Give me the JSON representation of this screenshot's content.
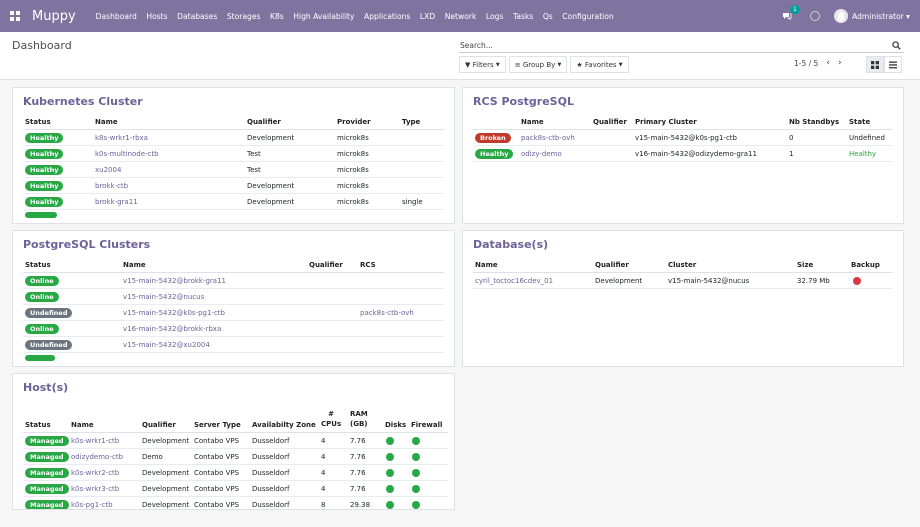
{
  "navbar": {
    "brand": "Muppy",
    "menu": [
      "Dashboard",
      "Hosts",
      "Databases",
      "Storages",
      "K8s",
      "High Availability",
      "Applications",
      "LXD",
      "Network",
      "Logs",
      "Tasks",
      "Qs",
      "Configuration"
    ],
    "chat_count": "1",
    "user": "Administrator ▾"
  },
  "control_panel": {
    "breadcrumb": "Dashboard",
    "search_placeholder": "Search...",
    "filters": "Filters",
    "group_by": "Group By",
    "favorites": "Favorites",
    "pager": "1-5 / 5"
  },
  "kubernetes": {
    "title": "Kubernetes Cluster",
    "headers": [
      "Status",
      "Name",
      "Qualifier",
      "Provider",
      "Type"
    ],
    "rows": [
      {
        "status": "Healthy",
        "name": "k8s-wrkr1-rbxa",
        "qualifier": "Development",
        "provider": "microk8s",
        "type": ""
      },
      {
        "status": "Healthy",
        "name": "k0s-multinode-ctb",
        "qualifier": "Test",
        "provider": "microk8s",
        "type": ""
      },
      {
        "status": "Healthy",
        "name": "xu2004",
        "qualifier": "Test",
        "provider": "microk8s",
        "type": ""
      },
      {
        "status": "Healthy",
        "name": "brokk-ctb",
        "qualifier": "Development",
        "provider": "microk8s",
        "type": ""
      },
      {
        "status": "Healthy",
        "name": "brokk-gra11",
        "qualifier": "Development",
        "provider": "microk8s",
        "type": "single"
      }
    ]
  },
  "rcs": {
    "title": "RCS PostgreSQL",
    "headers": [
      "",
      "Name",
      "Qualifier",
      "Primary Cluster",
      "Nb Standbys",
      "State"
    ],
    "rows": [
      {
        "status": "Broken",
        "name": "pack8s-ctb-ovh",
        "qualifier": "",
        "primary": "v15-main-5432@k0s-pg1-ctb",
        "standbys": "0",
        "state": "Undefined"
      },
      {
        "status": "Healthy",
        "name": "odizy-demo",
        "qualifier": "",
        "primary": "v16-main-5432@odizydemo-gra11",
        "standbys": "1",
        "state": "Healthy"
      }
    ]
  },
  "pgclusters": {
    "title": "PostgreSQL Clusters",
    "headers": [
      "Status",
      "Name",
      "Qualifier",
      "RCS"
    ],
    "rows": [
      {
        "status": "Online",
        "name": "v15-main-5432@brokk-gra11",
        "qualifier": "",
        "rcs": ""
      },
      {
        "status": "Online",
        "name": "v15-main-5432@nucus",
        "qualifier": "",
        "rcs": ""
      },
      {
        "status": "Undefined",
        "name": "v15-main-5432@k0s-pg1-ctb",
        "qualifier": "",
        "rcs": "pack8s-ctb-ovh"
      },
      {
        "status": "Online",
        "name": "v16-main-5432@brokk-rbxa",
        "qualifier": "",
        "rcs": ""
      },
      {
        "status": "Undefined",
        "name": "v15-main-5432@xu2004",
        "qualifier": "",
        "rcs": ""
      }
    ]
  },
  "databases": {
    "title": "Database(s)",
    "headers": [
      "Name",
      "Qualifier",
      "Cluster",
      "Size",
      "Backup"
    ],
    "rows": [
      {
        "name": "cyril_toctoc16cdev_01",
        "qualifier": "Development",
        "cluster": "v15-main-5432@nucus",
        "size": "32.79 Mb",
        "backup": "red"
      }
    ]
  },
  "hosts": {
    "title": "Host(s)",
    "headers": [
      "Status",
      "Name",
      "Qualifier",
      "Server Type",
      "Availabilty Zone",
      "#\nCPUs",
      "RAM\n(GB)",
      "Disks",
      "Firewall"
    ],
    "rows": [
      {
        "status": "Managed",
        "name": "k0s-wrkr1-ctb",
        "qualifier": "Development",
        "server_type": "Contabo VPS",
        "zone": "Dusseldorf",
        "cpus": "4",
        "ram": "7.76"
      },
      {
        "status": "Managed",
        "name": "odizydemo-ctb",
        "qualifier": "Demo",
        "server_type": "Contabo VPS",
        "zone": "Dusseldorf",
        "cpus": "4",
        "ram": "7.76"
      },
      {
        "status": "Managed",
        "name": "k0s-wrkr2-ctb",
        "qualifier": "Development",
        "server_type": "Contabo VPS",
        "zone": "Dusseldorf",
        "cpus": "4",
        "ram": "7.76"
      },
      {
        "status": "Managed",
        "name": "k0s-wrkr3-ctb",
        "qualifier": "Development",
        "server_type": "Contabo VPS",
        "zone": "Dusseldorf",
        "cpus": "4",
        "ram": "7.76"
      },
      {
        "status": "Managed",
        "name": "k0s-pg1-ctb",
        "qualifier": "Development",
        "server_type": "Contabo VPS",
        "zone": "Dusseldorf",
        "cpus": "8",
        "ram": "29.38"
      }
    ]
  },
  "colors": {
    "navbar": "#7f749f",
    "accent": "#6c6298",
    "healthy": "#28a745",
    "broken": "#c0392b",
    "undefined": "#6c757d"
  }
}
